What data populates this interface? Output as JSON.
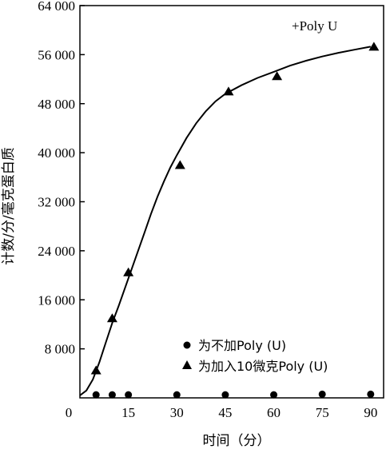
{
  "chart_data": {
    "type": "scatter",
    "xlabel": "时间（分）",
    "ylabel": "计数/分/毫克蛋白质",
    "annotation": "+Poly U",
    "xlim": [
      0,
      94
    ],
    "ylim": [
      0,
      64000
    ],
    "x_ticks": [
      {
        "value": 0,
        "label": "0"
      },
      {
        "value": 15,
        "label": "15"
      },
      {
        "value": 30,
        "label": "30"
      },
      {
        "value": 45,
        "label": "45"
      },
      {
        "value": 60,
        "label": "60"
      },
      {
        "value": 75,
        "label": "75"
      },
      {
        "value": 90,
        "label": "90"
      }
    ],
    "y_ticks": [
      {
        "value": 8000,
        "label": "8 000"
      },
      {
        "value": 16000,
        "label": "16 000"
      },
      {
        "value": 24000,
        "label": "24 000"
      },
      {
        "value": 32000,
        "label": "32 000"
      },
      {
        "value": 40000,
        "label": "40 000"
      },
      {
        "value": 48000,
        "label": "48 000"
      },
      {
        "value": 56000,
        "label": "56 000"
      },
      {
        "value": 64000,
        "label": "64 000"
      }
    ],
    "series": [
      {
        "name": "为不加Poly (U)",
        "marker": "circle",
        "points": [
          {
            "x": 5,
            "y": 500
          },
          {
            "x": 10,
            "y": 500
          },
          {
            "x": 15,
            "y": 500
          },
          {
            "x": 30,
            "y": 500
          },
          {
            "x": 45,
            "y": 500
          },
          {
            "x": 60,
            "y": 500
          },
          {
            "x": 75,
            "y": 600
          },
          {
            "x": 90,
            "y": 600
          }
        ]
      },
      {
        "name": "为加入10微克Poly (U)",
        "marker": "triangle",
        "points": [
          {
            "x": 5,
            "y": 4500
          },
          {
            "x": 10,
            "y": 13000
          },
          {
            "x": 15,
            "y": 20500
          },
          {
            "x": 31,
            "y": 38000
          },
          {
            "x": 46,
            "y": 50000
          },
          {
            "x": 61,
            "y": 52500
          },
          {
            "x": 91,
            "y": 57300
          }
        ]
      }
    ],
    "fit_curve": [
      [
        0,
        400
      ],
      [
        2,
        1200
      ],
      [
        4,
        3000
      ],
      [
        6,
        5800
      ],
      [
        8,
        9000
      ],
      [
        10,
        12200
      ],
      [
        12,
        15000
      ],
      [
        14,
        18000
      ],
      [
        16,
        21000
      ],
      [
        18,
        24000
      ],
      [
        20,
        27000
      ],
      [
        22,
        30000
      ],
      [
        24,
        32800
      ],
      [
        26,
        35300
      ],
      [
        28,
        37600
      ],
      [
        30,
        39600
      ],
      [
        33,
        42400
      ],
      [
        36,
        44800
      ],
      [
        39,
        46800
      ],
      [
        42,
        48400
      ],
      [
        45,
        49600
      ],
      [
        50,
        51000
      ],
      [
        55,
        52200
      ],
      [
        60,
        53200
      ],
      [
        65,
        54200
      ],
      [
        70,
        55000
      ],
      [
        75,
        55700
      ],
      [
        80,
        56300
      ],
      [
        85,
        56800
      ],
      [
        90,
        57300
      ]
    ]
  }
}
